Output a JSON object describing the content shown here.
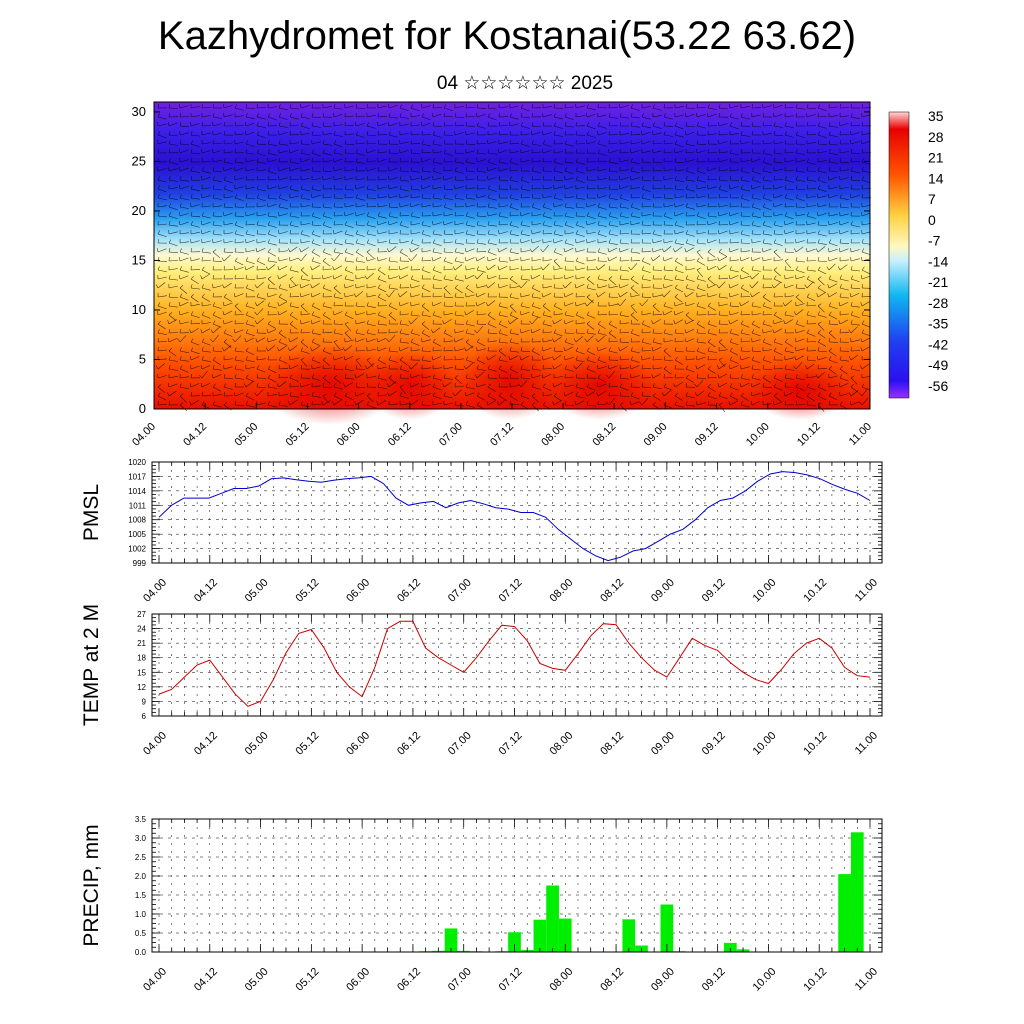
{
  "title": "Kazhydromet for Kostanai(53.22 63.62)",
  "subtitle": "04 ☆☆☆☆☆☆ 2025",
  "chart_data": [
    {
      "type": "heatmap",
      "name": "vertical temperature cross-section with wind barbs",
      "x_ticks": [
        "04.00",
        "04.12",
        "05.00",
        "05.12",
        "06.00",
        "06.12",
        "07.00",
        "07.12",
        "08.00",
        "08.12",
        "09.00",
        "09.12",
        "10.00",
        "10.12",
        "11.00"
      ],
      "y_ticks": [
        "0",
        "5",
        "10",
        "15",
        "20",
        "25",
        "30"
      ],
      "ylim": [
        0,
        31
      ],
      "colorbar_labels": [
        "35",
        "28",
        "21",
        "14",
        "7",
        "0",
        "-7",
        "-14",
        "-21",
        "-28",
        "-35",
        "-42",
        "-49",
        "-56"
      ],
      "colors": {
        "warm": "#e00000",
        "mid": "#ffee70",
        "cold_light": "#90d8f0",
        "cold": "#2020f0",
        "top": "#8a2be2"
      }
    },
    {
      "type": "line",
      "ylabel": "PMSL",
      "x_ticks": [
        "04.00",
        "04.12",
        "05.00",
        "05.12",
        "06.00",
        "06.12",
        "07.00",
        "07.12",
        "08.00",
        "08.12",
        "09.00",
        "09.12",
        "10.00",
        "10.12",
        "11.00"
      ],
      "y_ticks": [
        "999",
        "1002",
        "1005",
        "1008",
        "1011",
        "1014",
        "1017",
        "1020"
      ],
      "ylim": [
        999,
        1020
      ],
      "color": "#0000cc",
      "values": [
        1008.5,
        1011,
        1012.5,
        1012.5,
        1012.5,
        1013.5,
        1014.5,
        1014.5,
        1015,
        1016.5,
        1016.7,
        1016.3,
        1016,
        1015.8,
        1016.2,
        1016.5,
        1016.7,
        1017,
        1015.5,
        1012.5,
        1011,
        1011.5,
        1011.8,
        1010.5,
        1011.5,
        1012,
        1011.3,
        1010.5,
        1010.2,
        1009.5,
        1009.5,
        1008.5,
        1006,
        1004,
        1002,
        1000.5,
        999.5,
        1000.2,
        1001.5,
        1002,
        1003.5,
        1005,
        1006,
        1008,
        1010.5,
        1012,
        1012.5,
        1014,
        1016,
        1017.5,
        1018,
        1017.8,
        1017.3,
        1016.5,
        1015.3,
        1014.3,
        1013.5,
        1012
      ]
    },
    {
      "type": "line",
      "ylabel": "TEMP at 2 M",
      "x_ticks": [
        "04.00",
        "04.12",
        "05.00",
        "05.12",
        "06.00",
        "06.12",
        "07.00",
        "07.12",
        "08.00",
        "08.12",
        "09.00",
        "09.12",
        "10.00",
        "10.12",
        "11.00"
      ],
      "y_ticks": [
        "6",
        "9",
        "12",
        "15",
        "18",
        "21",
        "24",
        "27"
      ],
      "ylim": [
        6,
        27
      ],
      "color": "#cc0000",
      "values": [
        10.5,
        11.5,
        14,
        16.5,
        17.5,
        14,
        10.5,
        8,
        9,
        13.5,
        19,
        23,
        23.8,
        20,
        15,
        12,
        10,
        16,
        24,
        25.5,
        25.5,
        20,
        18,
        16.5,
        15,
        18,
        21.5,
        24.7,
        24.4,
        21.5,
        16.8,
        15.8,
        15.4,
        18.8,
        22.5,
        25,
        24.8,
        21,
        18,
        15.5,
        14,
        18,
        22,
        20.5,
        19.5,
        17,
        15,
        13.5,
        12.7,
        15.5,
        18.8,
        21,
        22,
        20,
        16,
        14.3,
        14
      ]
    },
    {
      "type": "bar",
      "ylabel": "PRECIP, mm",
      "x_ticks": [
        "04.00",
        "04.12",
        "05.00",
        "05.12",
        "06.00",
        "06.12",
        "07.00",
        "07.12",
        "08.00",
        "08.12",
        "09.00",
        "09.12",
        "10.00",
        "10.12",
        "11.00"
      ],
      "y_ticks": [
        "0.0",
        "0.5",
        "1.0",
        "1.5",
        "2.0",
        "2.5",
        "3.0",
        "3.5"
      ],
      "ylim": [
        0,
        3.5
      ],
      "color": "#00ee00",
      "values": [
        0,
        0,
        0,
        0,
        0,
        0,
        0,
        0,
        0,
        0,
        0,
        0,
        0,
        0,
        0,
        0,
        0,
        0,
        0,
        0,
        0,
        0.02,
        0.03,
        0.62,
        0.03,
        0.02,
        0.01,
        0.02,
        0.52,
        0.05,
        0.85,
        1.75,
        0.88,
        0,
        0,
        0,
        0,
        0.86,
        0.17,
        0,
        1.25,
        0.02,
        0,
        0,
        0,
        0.24,
        0.07,
        0,
        0,
        0,
        0,
        0,
        0,
        0,
        2.05,
        3.15,
        0
      ]
    }
  ]
}
